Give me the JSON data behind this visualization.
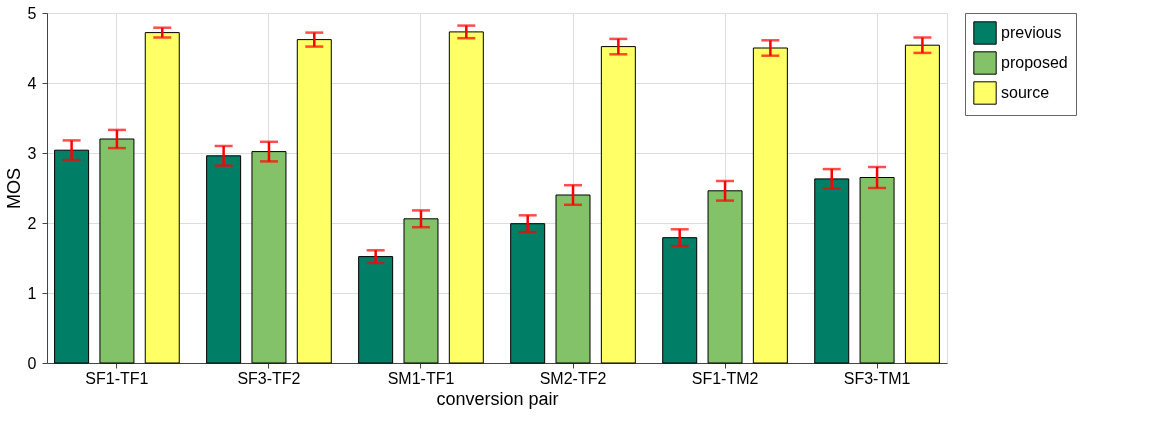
{
  "chart_data": {
    "type": "bar",
    "xlabel": "conversion pair",
    "ylabel": "MOS",
    "categories": [
      "SF1-TF1",
      "SF3-TF2",
      "SM1-TF1",
      "SM2-TF2",
      "SF1-TM2",
      "SF3-TM1"
    ],
    "series": [
      {
        "name": "previous",
        "color": "#007f67",
        "values": [
          3.04,
          2.96,
          1.52,
          1.99,
          1.79,
          2.63
        ],
        "errors": [
          0.14,
          0.14,
          0.09,
          0.12,
          0.12,
          0.14
        ]
      },
      {
        "name": "proposed",
        "color": "#84c26a",
        "values": [
          3.2,
          3.02,
          2.06,
          2.4,
          2.46,
          2.65
        ],
        "errors": [
          0.13,
          0.14,
          0.12,
          0.14,
          0.14,
          0.15
        ]
      },
      {
        "name": "source",
        "color": "#ffff66",
        "values": [
          4.72,
          4.62,
          4.73,
          4.52,
          4.5,
          4.54
        ],
        "errors": [
          0.07,
          0.1,
          0.09,
          0.11,
          0.11,
          0.11
        ]
      }
    ],
    "ylim": [
      0,
      5
    ],
    "yticks": [
      0,
      1,
      2,
      3,
      4,
      5
    ],
    "grid": true,
    "legend": "right"
  }
}
